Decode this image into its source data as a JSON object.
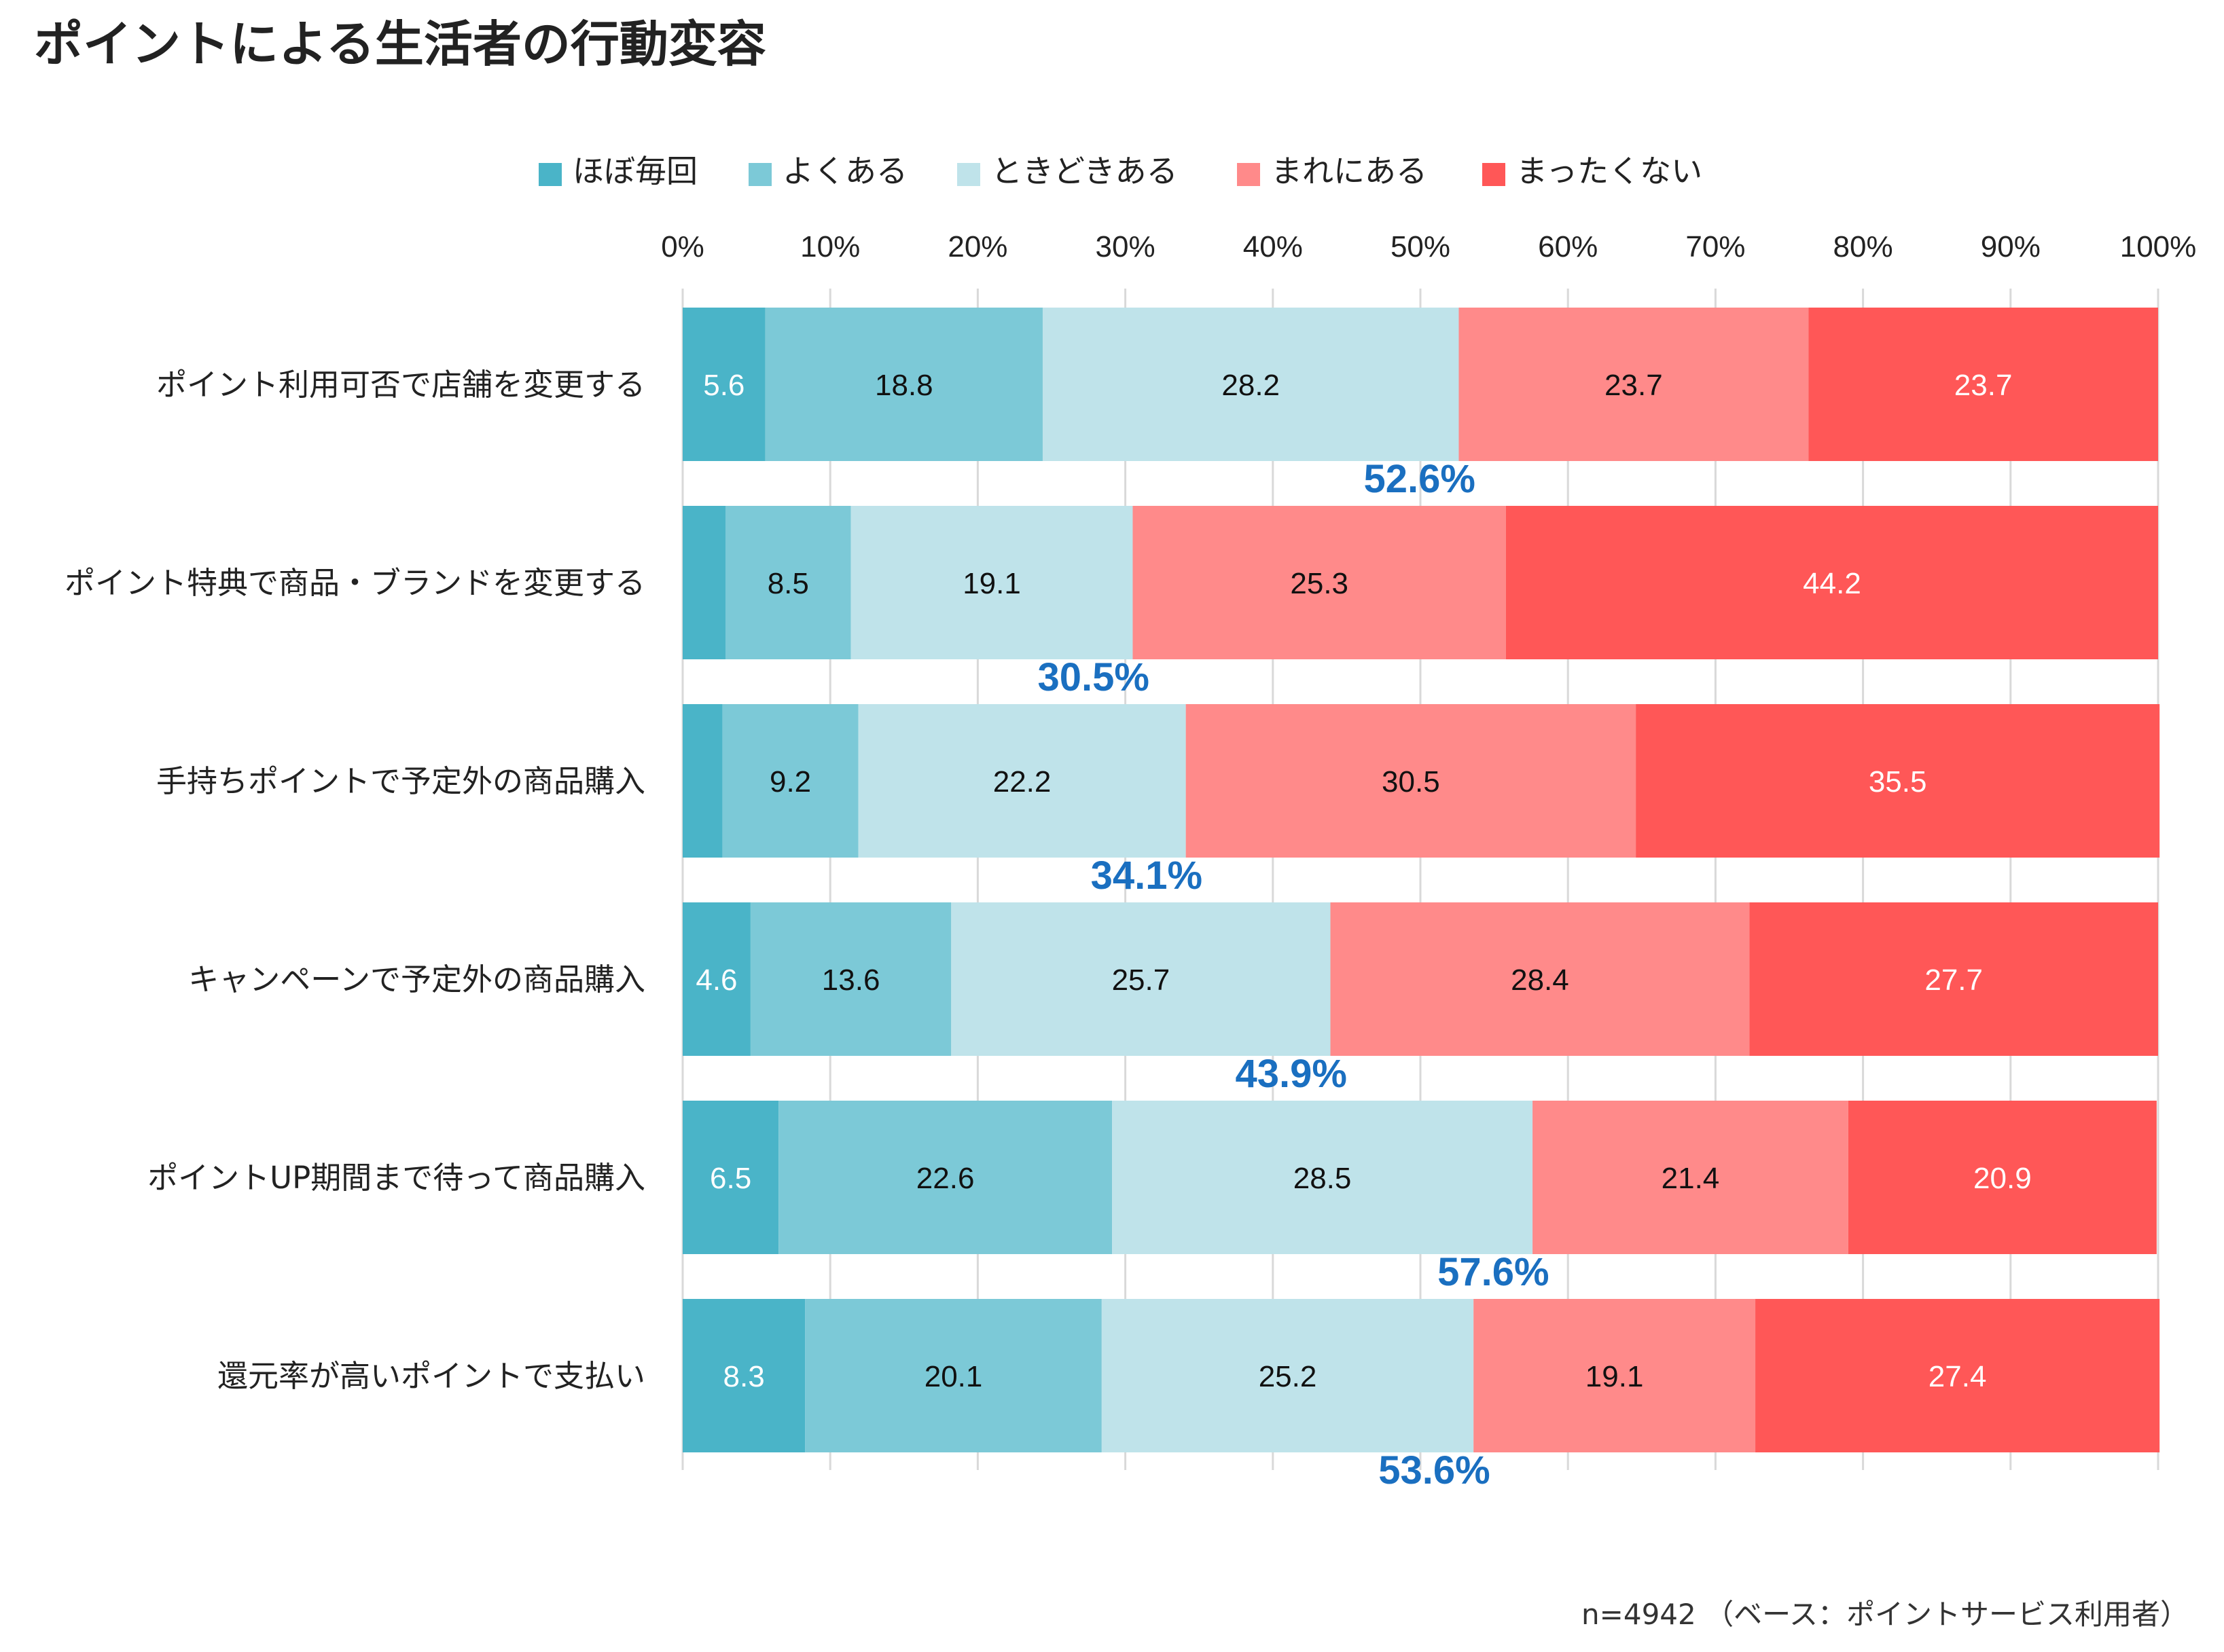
{
  "title": "ポイントによる生活者の行動変容",
  "footnote": "n=4942 （ベース：ポイントサービス利用者）",
  "colors": {
    "series": [
      "#4ab4c8",
      "#7cc9d7",
      "#bfe3ea",
      "#ff8a8a",
      "#ff5757"
    ],
    "label_text": [
      "#ffffff",
      "#111111",
      "#111111",
      "#111111",
      "#ffffff"
    ],
    "cumulative": "#1a6fc0",
    "grid": "#d9d9d9"
  },
  "chart_data": {
    "type": "bar",
    "orientation": "horizontal-stacked-100",
    "title": "ポイントによる生活者の行動変容",
    "legend_position": "top",
    "xlim": [
      0,
      100
    ],
    "x_ticks": [
      "0%",
      "10%",
      "20%",
      "30%",
      "40%",
      "50%",
      "60%",
      "70%",
      "80%",
      "90%",
      "100%"
    ],
    "categories": [
      "ポイント利用可否で店舗を変更する",
      "ポイント特典で商品・ブランドを変更する",
      "手持ちポイントで予定外の商品購入",
      "キャンペーンで予定外の商品購入",
      "ポイントUP期間まで待って商品購入",
      "還元率が高いポイントで支払い"
    ],
    "series": [
      {
        "name": "ほぼ毎回",
        "values": [
          5.6,
          2.9,
          2.7,
          4.6,
          6.5,
          8.3
        ],
        "labels": [
          "5.6",
          "",
          "",
          "4.6",
          "6.5",
          "8.3"
        ]
      },
      {
        "name": "よくある",
        "values": [
          18.8,
          8.5,
          9.2,
          13.6,
          22.6,
          20.1
        ],
        "labels": [
          "18.8",
          "8.5",
          "9.2",
          "13.6",
          "22.6",
          "20.1"
        ]
      },
      {
        "name": "ときどきある",
        "values": [
          28.2,
          19.1,
          22.2,
          25.7,
          28.5,
          25.2
        ],
        "labels": [
          "28.2",
          "19.1",
          "22.2",
          "25.7",
          "28.5",
          "25.2"
        ]
      },
      {
        "name": "まれにある",
        "values": [
          23.7,
          25.3,
          30.5,
          28.4,
          21.4,
          19.1
        ],
        "labels": [
          "23.7",
          "25.3",
          "30.5",
          "28.4",
          "21.4",
          "19.1"
        ]
      },
      {
        "name": "まったくない",
        "values": [
          23.7,
          44.2,
          35.5,
          27.7,
          20.9,
          27.4
        ],
        "labels": [
          "23.7",
          "44.2",
          "35.5",
          "27.7",
          "20.9",
          "27.4"
        ]
      }
    ],
    "cumulative": [
      "52.6%",
      "30.5%",
      "34.1%",
      "43.9%",
      "57.6%",
      "53.6%"
    ]
  }
}
